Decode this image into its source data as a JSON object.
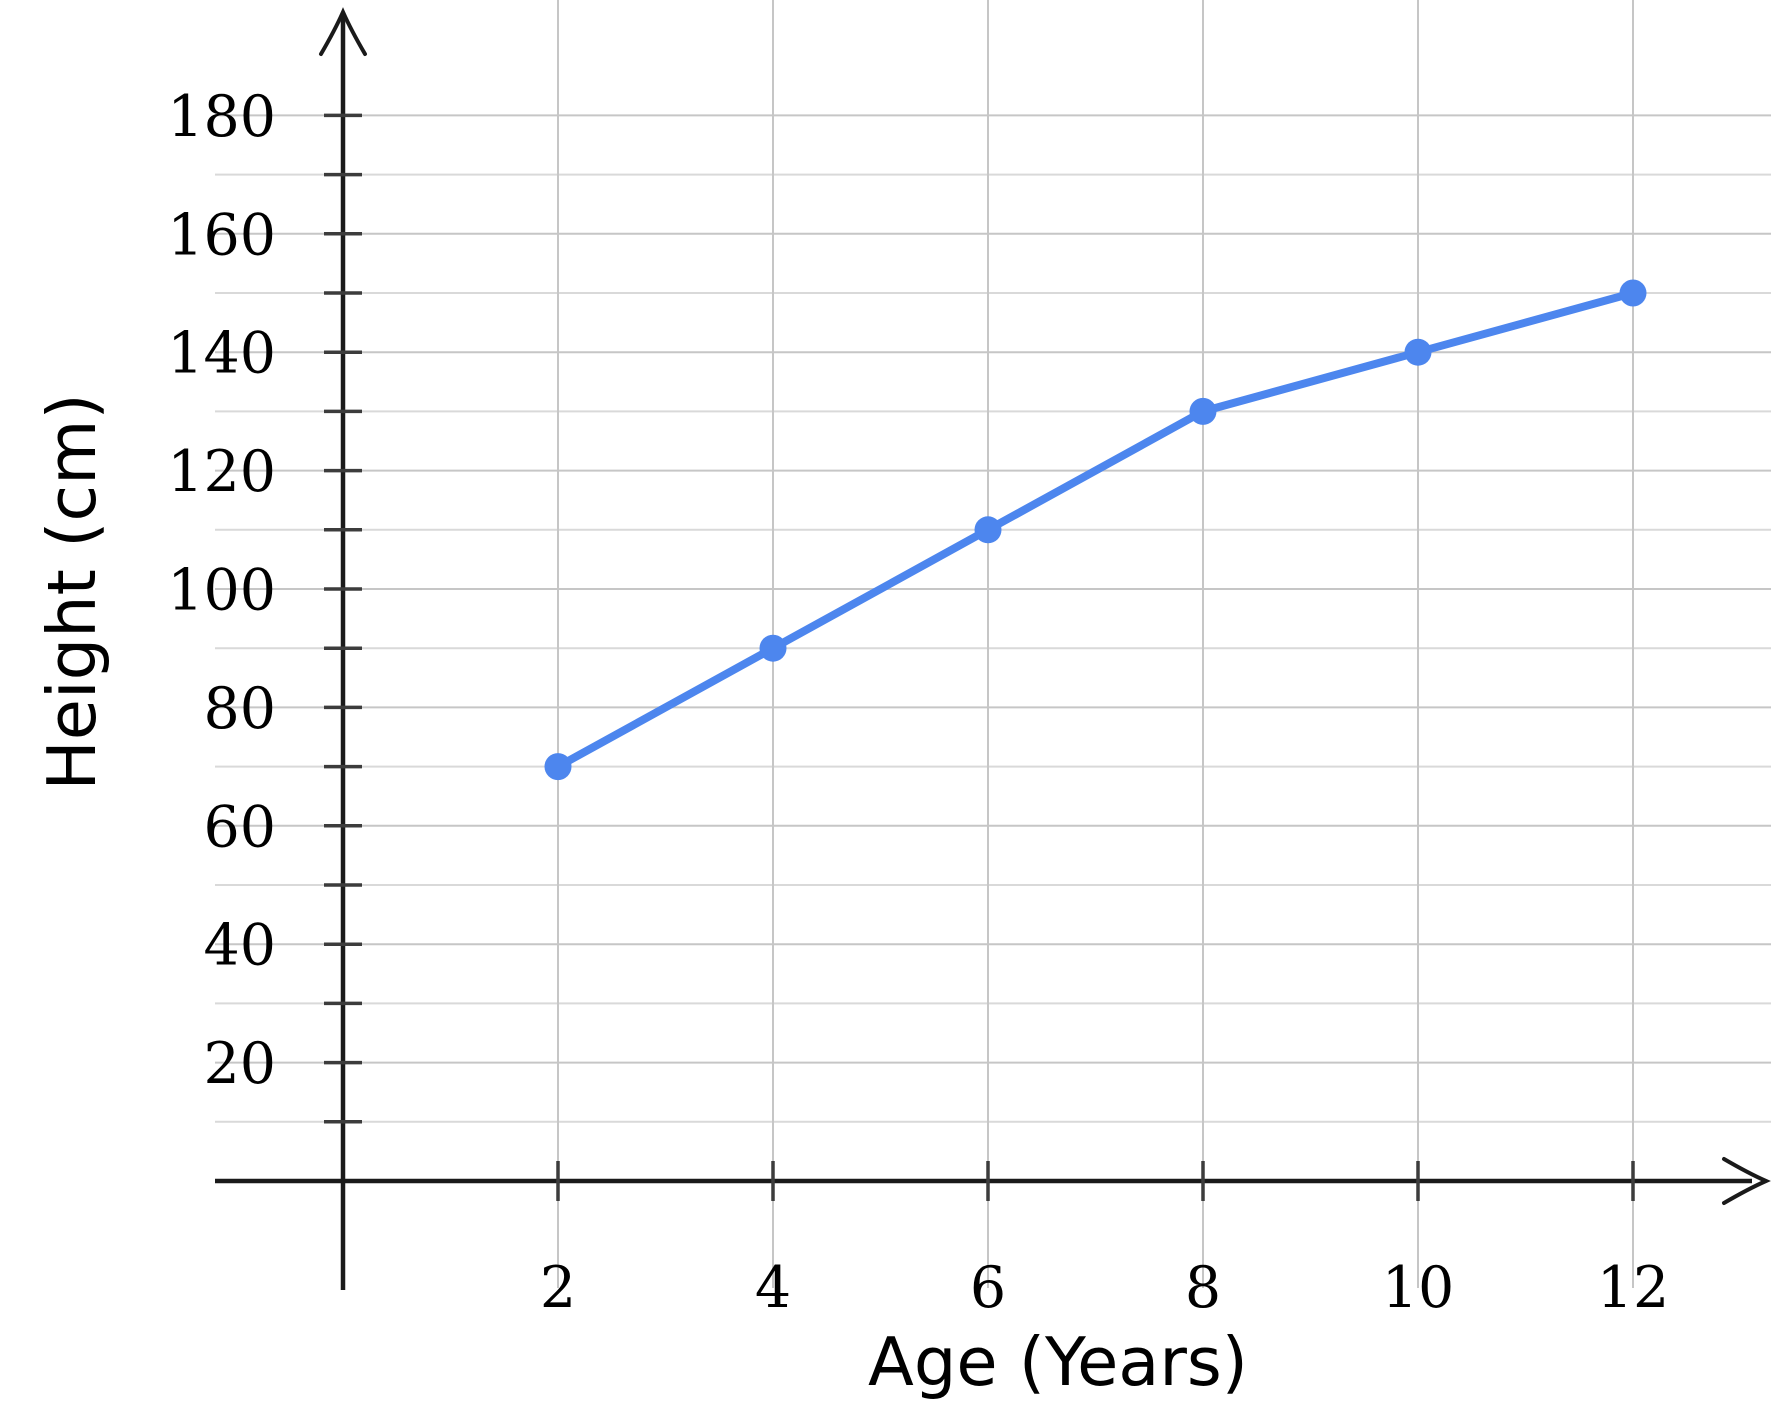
{
  "chart_data": {
    "type": "line",
    "title": "",
    "xlabel": "Age (Years)",
    "ylabel": "Height (cm)",
    "x": [
      2,
      4,
      6,
      8,
      10,
      12
    ],
    "series": [
      {
        "name": "height",
        "values": [
          70,
          90,
          110,
          130,
          140,
          150
        ]
      }
    ],
    "x_ticks": [
      2,
      4,
      6,
      8,
      10,
      12
    ],
    "y_ticks_labeled": [
      20,
      40,
      60,
      80,
      100,
      120,
      140,
      160,
      180
    ],
    "y_ticks_minor": [
      10,
      30,
      50,
      70,
      90,
      110,
      130,
      150,
      170
    ],
    "xlim": [
      0,
      13.3
    ],
    "ylim": [
      0,
      199
    ],
    "grid": "on",
    "legend_position": "none",
    "marker": "circle",
    "colors": {
      "series": "#4d86ee",
      "axis": "#1a1a1a",
      "tick": "#3c3c3c",
      "grid_major": "#c6c6c6",
      "grid_minor": "#d9d9d9",
      "text": "#000000",
      "background": "#ffffff"
    }
  }
}
